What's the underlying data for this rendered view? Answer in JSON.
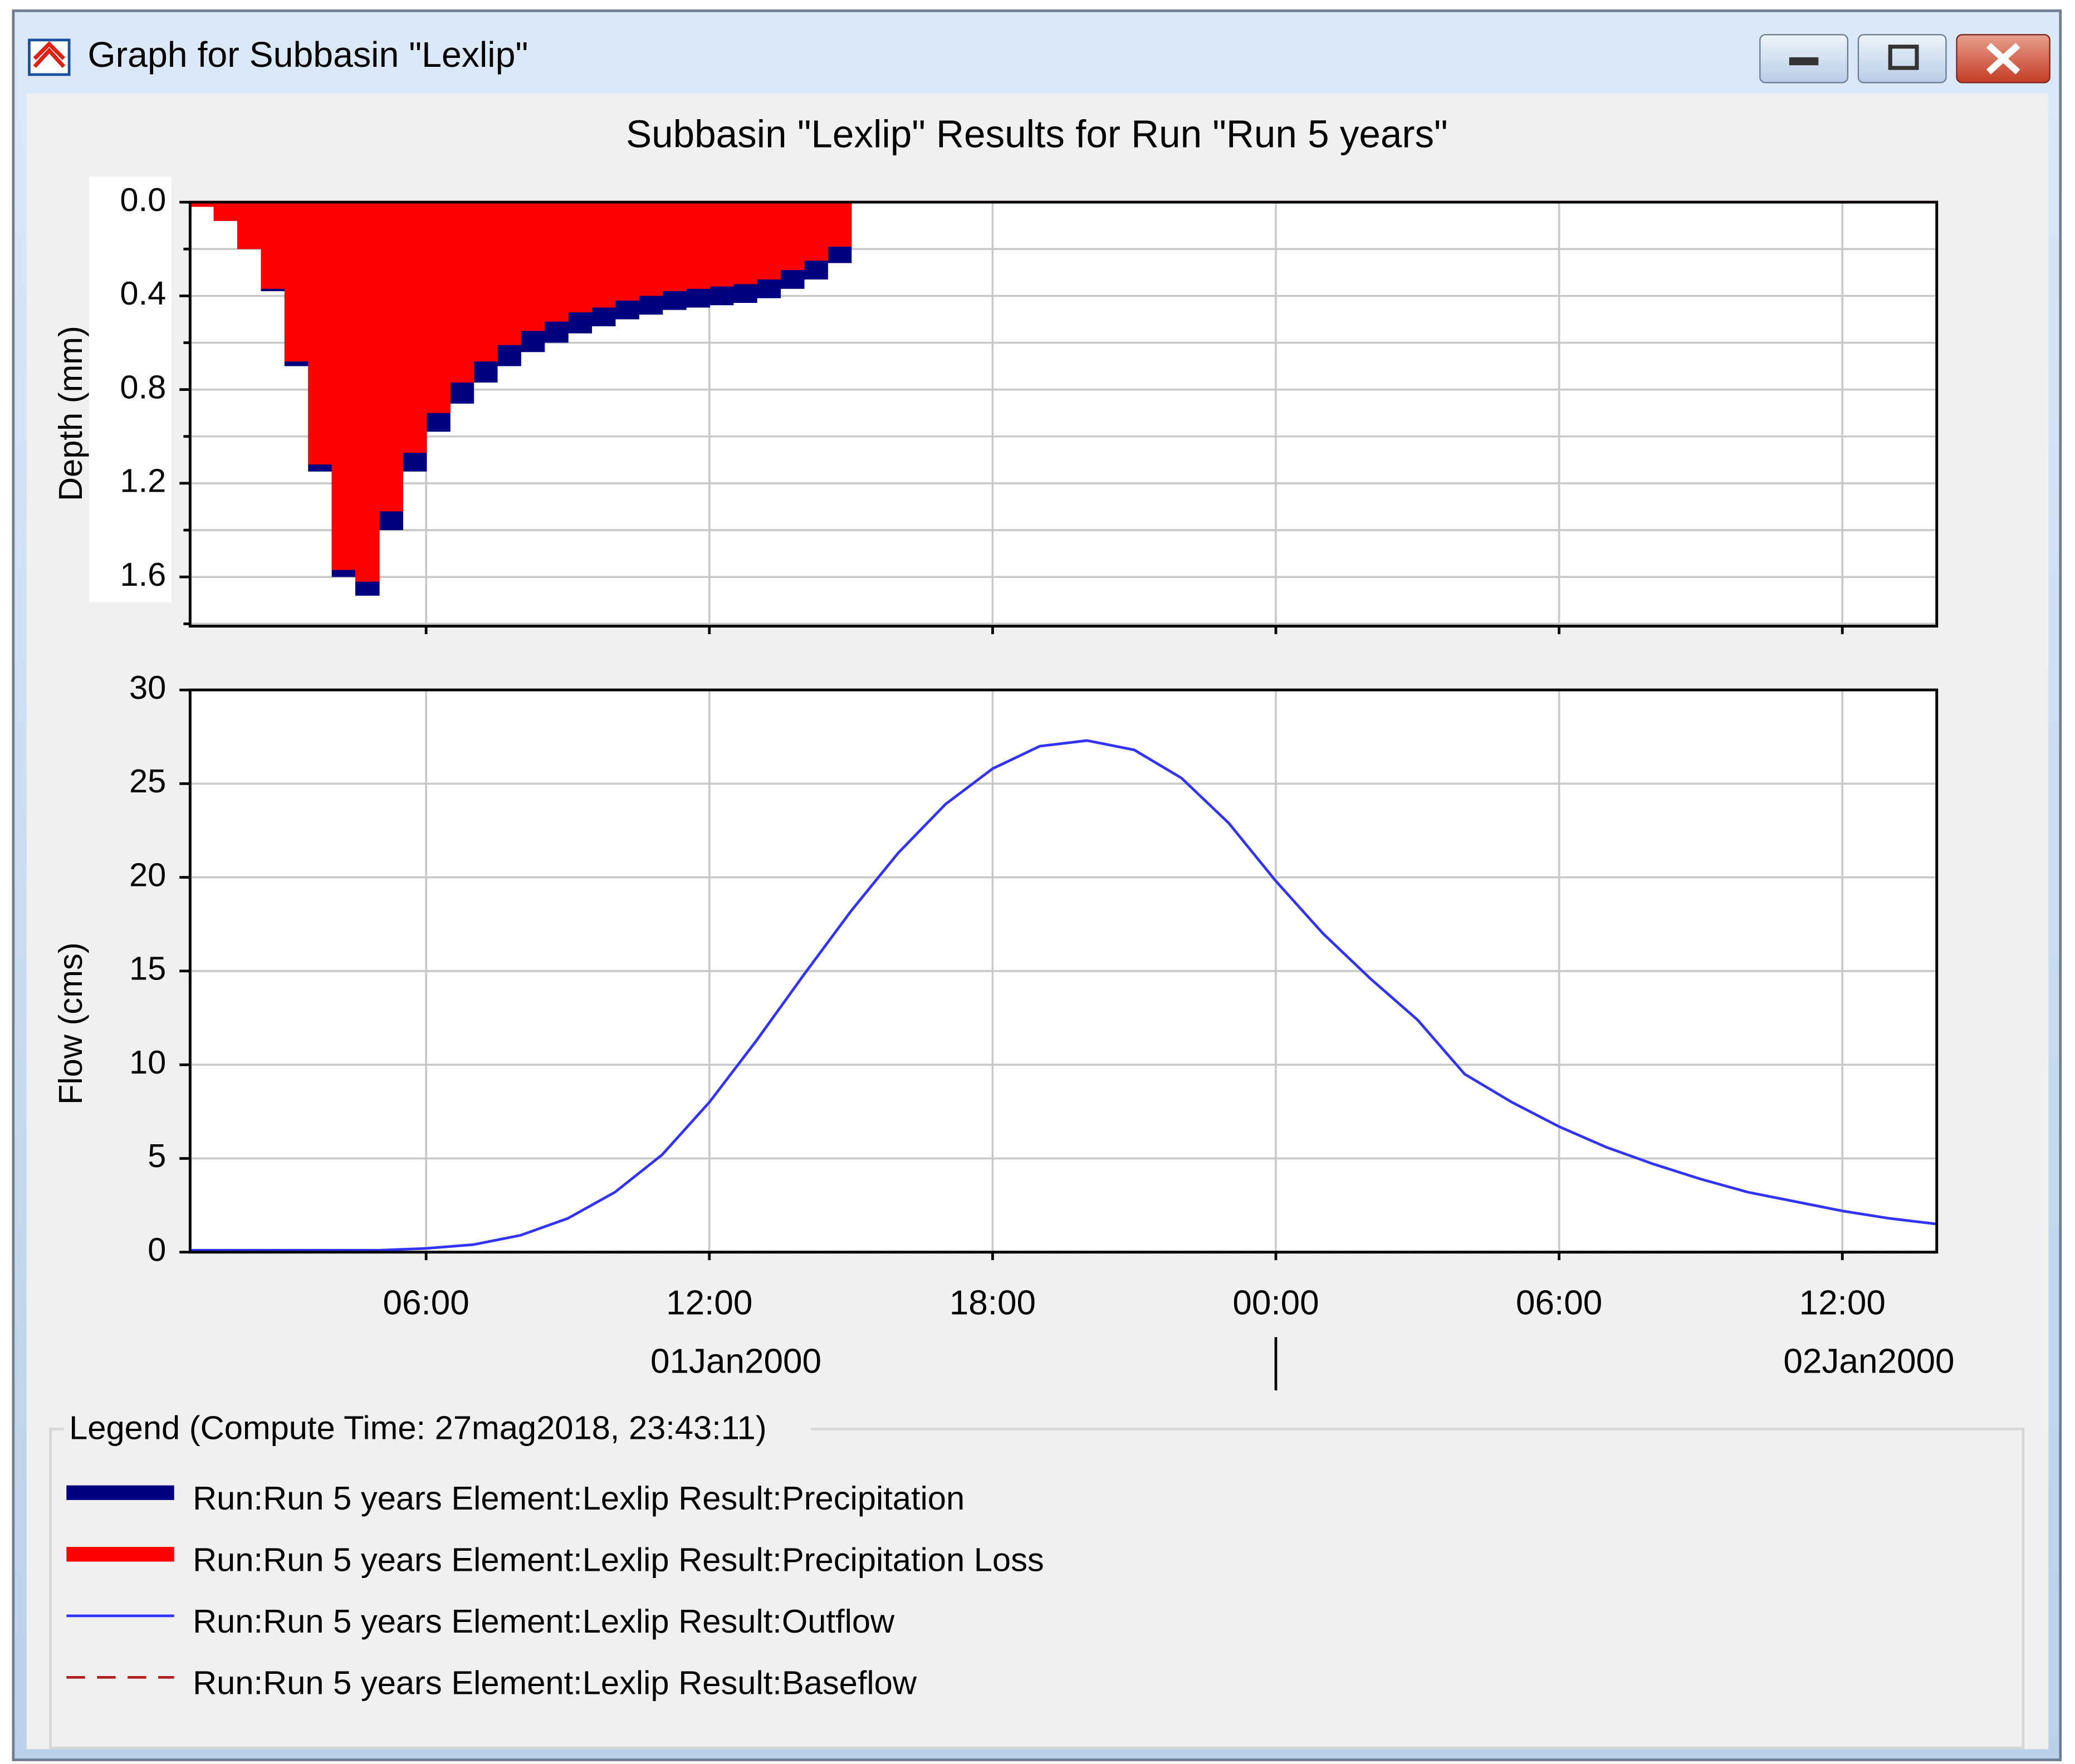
{
  "window": {
    "title": "Graph for Subbasin \"Lexlip\""
  },
  "legend": {
    "title": "Legend (Compute Time: 27mag2018, 23:43:11)"
  },
  "chart_data": [
    {
      "type": "bar",
      "title": "Subbasin \"Lexlip\" Results for Run \"Run 5 years\"",
      "ylabel": "Depth (mm)",
      "y_inverted": true,
      "overlap": true,
      "grid": true,
      "xlim": [
        1,
        38
      ],
      "ylim": [
        0,
        1.81
      ],
      "yticks": [
        {
          "value": 0,
          "label": "0.0"
        },
        0.4,
        0.8,
        1.2,
        1.6
      ],
      "yminorticks": [
        0.2,
        0.6,
        1.0,
        1.4,
        1.8
      ],
      "xticks": [
        6,
        12,
        18,
        24,
        30,
        36
      ],
      "x": [
        1.0,
        1.5,
        2.0,
        2.5,
        3.0,
        3.5,
        4.0,
        4.5,
        5.0,
        5.5,
        6.0,
        6.5,
        7.0,
        7.5,
        8.0,
        8.5,
        9.0,
        9.5,
        10.0,
        10.5,
        11.0,
        11.5,
        12.0,
        12.5,
        13.0,
        13.5,
        14.0,
        14.5
      ],
      "series": [
        {
          "name": "Run:Run 5 years Element:Lexlip Result:Precipitation",
          "color": "#000080",
          "values": [
            0.02,
            0.08,
            0.2,
            0.38,
            0.7,
            1.15,
            1.6,
            1.68,
            1.4,
            1.15,
            0.98,
            0.86,
            0.77,
            0.7,
            0.64,
            0.6,
            0.56,
            0.53,
            0.5,
            0.48,
            0.46,
            0.45,
            0.44,
            0.43,
            0.41,
            0.37,
            0.33,
            0.26
          ]
        },
        {
          "name": "Run:Run 5 years Element:Lexlip Result:Precipitation Loss",
          "color": "#ff0000",
          "values": [
            0.02,
            0.08,
            0.2,
            0.37,
            0.68,
            1.12,
            1.57,
            1.62,
            1.32,
            1.07,
            0.9,
            0.77,
            0.68,
            0.61,
            0.55,
            0.51,
            0.47,
            0.45,
            0.42,
            0.4,
            0.38,
            0.37,
            0.36,
            0.35,
            0.33,
            0.29,
            0.25,
            0.19
          ]
        }
      ]
    },
    {
      "type": "line",
      "ylabel": "Flow (cms)",
      "grid": true,
      "xlim": [
        1,
        38
      ],
      "ylim": [
        0,
        30
      ],
      "yticks": [
        0,
        5,
        10,
        15,
        20,
        25,
        30
      ],
      "xticks": [
        {
          "value": 6,
          "label": "06:00"
        },
        {
          "value": 12,
          "label": "12:00"
        },
        {
          "value": 18,
          "label": "18:00"
        },
        {
          "value": 24,
          "label": "00:00"
        },
        {
          "value": 30,
          "label": "06:00"
        },
        {
          "value": 36,
          "label": "12:00"
        }
      ],
      "xdate_labels": [
        {
          "value": 12,
          "label": "01Jan2000"
        },
        {
          "value": 36,
          "label": "02Jan2000"
        }
      ],
      "x": [
        1,
        2,
        3,
        4,
        5,
        6,
        7,
        8,
        9,
        10,
        11,
        12,
        13,
        14,
        15,
        16,
        17,
        18,
        19,
        20,
        21,
        22,
        23,
        24,
        25,
        26,
        27,
        28,
        29,
        30,
        31,
        32,
        33,
        34,
        35,
        36,
        37,
        38
      ],
      "series": [
        {
          "name": "Run:Run 5 years Element:Lexlip Result:Outflow",
          "color": "#3333ff",
          "dash": false,
          "values": [
            0.1,
            0.1,
            0.1,
            0.1,
            0.1,
            0.2,
            0.4,
            0.9,
            1.8,
            3.2,
            5.2,
            8.0,
            11.3,
            14.8,
            18.2,
            21.3,
            23.9,
            25.8,
            27.0,
            27.3,
            26.8,
            25.3,
            22.9,
            19.8,
            17.0,
            14.6,
            12.4,
            9.5,
            8.0,
            6.7,
            5.6,
            4.7,
            3.9,
            3.2,
            2.7,
            2.2,
            1.8,
            1.5
          ]
        },
        {
          "name": "Run:Run 5 years Element:Lexlip Result:Baseflow",
          "color": "#b22222",
          "dash": true,
          "values": [
            0,
            0,
            0,
            0,
            0,
            0,
            0,
            0,
            0,
            0,
            0,
            0,
            0,
            0,
            0,
            0,
            0,
            0,
            0,
            0,
            0,
            0,
            0,
            0,
            0,
            0,
            0,
            0,
            0,
            0,
            0,
            0,
            0,
            0,
            0,
            0,
            0,
            0
          ]
        }
      ]
    }
  ]
}
